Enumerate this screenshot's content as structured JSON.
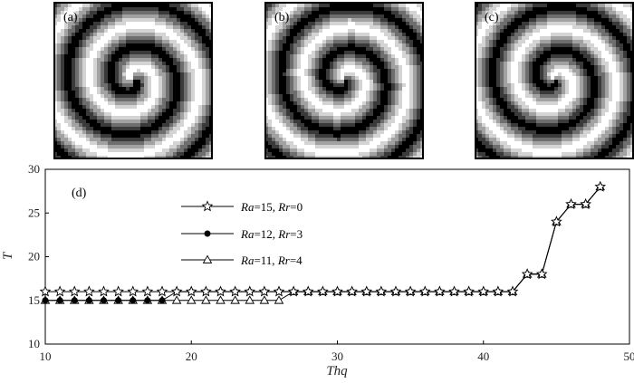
{
  "panels": [
    {
      "label": "(a)"
    },
    {
      "label": "(b)"
    },
    {
      "label": "(c)"
    }
  ],
  "chart_data": {
    "type": "line",
    "panel_label": "(d)",
    "xlabel": "Thq",
    "ylabel": "T",
    "xlim": [
      10,
      50
    ],
    "ylim": [
      10,
      30
    ],
    "xticks": [
      10,
      20,
      30,
      40,
      50
    ],
    "yticks": [
      10,
      15,
      20,
      25,
      30
    ],
    "grid": false,
    "legend_position": "upper-left",
    "series": [
      {
        "name": "Ra=15, Rr=0",
        "legend": {
          "a": "Ra",
          "av": "=15, ",
          "b": "Rr",
          "bv": "=0"
        },
        "marker": "star-open",
        "x": [
          10,
          11,
          12,
          13,
          14,
          15,
          16,
          17,
          18,
          19,
          20,
          21,
          22,
          23,
          24,
          25,
          26,
          27,
          28,
          29,
          30,
          31,
          32,
          33,
          34,
          35,
          36,
          37,
          38,
          39,
          40,
          41,
          42,
          43,
          44,
          45,
          46,
          47,
          48
        ],
        "y": [
          16,
          16,
          16,
          16,
          16,
          16,
          16,
          16,
          16,
          16,
          16,
          16,
          16,
          16,
          16,
          16,
          16,
          16,
          16,
          16,
          16,
          16,
          16,
          16,
          16,
          16,
          16,
          16,
          16,
          16,
          16,
          16,
          16,
          18,
          18,
          24,
          26,
          26,
          28
        ]
      },
      {
        "name": "Ra=12, Rr=3",
        "legend": {
          "a": "Ra",
          "av": "=12, ",
          "b": "Rr",
          "bv": "=3"
        },
        "marker": "circle-filled",
        "x": [
          10,
          11,
          12,
          13,
          14,
          15,
          16,
          17,
          18,
          19,
          20,
          21,
          22,
          23,
          24,
          25,
          26,
          27,
          28,
          29,
          30,
          31,
          32,
          33,
          34,
          35,
          36,
          37,
          38,
          39,
          40,
          41,
          42,
          43,
          44,
          45,
          46,
          47,
          48
        ],
        "y": [
          15,
          15,
          15,
          15,
          15,
          15,
          15,
          15,
          15,
          16,
          16,
          16,
          16,
          16,
          16,
          16,
          16,
          16,
          16,
          16,
          16,
          16,
          16,
          16,
          16,
          16,
          16,
          16,
          16,
          16,
          16,
          16,
          16,
          18,
          18,
          24,
          26,
          26,
          28
        ]
      },
      {
        "name": "Ra=11, Rr=4",
        "legend": {
          "a": "Ra",
          "av": "=11, ",
          "b": "Rr",
          "bv": "=4"
        },
        "marker": "triangle-open",
        "x": [
          10,
          11,
          12,
          13,
          14,
          15,
          16,
          17,
          18,
          19,
          20,
          21,
          22,
          23,
          24,
          25,
          26,
          27,
          28,
          29,
          30,
          31,
          32,
          33,
          34,
          35,
          36,
          37,
          38,
          39,
          40,
          41,
          42,
          43,
          44,
          45,
          46,
          47,
          48
        ],
        "y": [
          15,
          15,
          15,
          15,
          15,
          15,
          15,
          15,
          15,
          15,
          15,
          15,
          15,
          15,
          15,
          15,
          15,
          16,
          16,
          16,
          16,
          16,
          16,
          16,
          16,
          16,
          16,
          16,
          16,
          16,
          16,
          16,
          16,
          18,
          18,
          24,
          26,
          26,
          28
        ]
      }
    ]
  }
}
